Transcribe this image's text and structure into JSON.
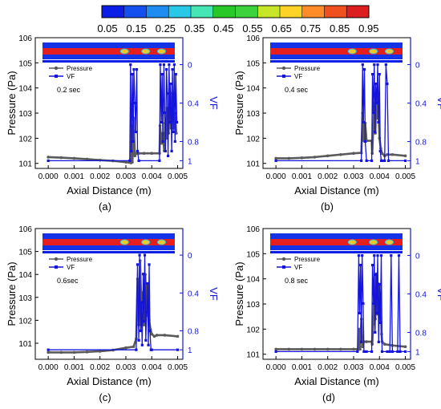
{
  "colorbar": {
    "labels": [
      "0.05",
      "0.15",
      "0.25",
      "0.35",
      "0.45",
      "0.55",
      "0.65",
      "0.75",
      "0.85",
      "0.95"
    ],
    "colors": [
      "#0a1ee6",
      "#1450f0",
      "#1e8cf0",
      "#28c8e6",
      "#46e6b4",
      "#28c828",
      "#3cd23c",
      "#c8e628",
      "#ffd228",
      "#ff8c28",
      "#f0501e",
      "#dc1e1e"
    ]
  },
  "colors": {
    "pressure": "#5a5a5a",
    "vf": "#1414dc",
    "axis": "#000000",
    "vf_axis": "#1414dc"
  },
  "chart_data": [
    {
      "type": "line",
      "panel_label": "(a)",
      "annotation": "0.2 sec",
      "xlabel": "Axial Distance (m)",
      "ylabel": "Pressure (Pa)",
      "y2label": "VF",
      "xlim": [
        -0.0005,
        0.0052
      ],
      "ylim": [
        100.8,
        106.0
      ],
      "y2lim": [
        1.08,
        -0.28
      ],
      "xticks": [
        "0.000",
        "0.001",
        "0.002",
        "0.003",
        "0.004",
        "0.005"
      ],
      "yticks": [
        "101",
        "102",
        "103",
        "104",
        "105",
        "106"
      ],
      "y2ticks": [
        "0",
        "0.4",
        "0.8",
        "1"
      ],
      "legend": [
        "Pressure",
        "VF"
      ],
      "series": [
        {
          "name": "Pressure",
          "axis": "left",
          "x": [
            0.0,
            0.0005,
            0.001,
            0.0015,
            0.002,
            0.0025,
            0.003,
            0.0032,
            0.00322,
            0.00325,
            0.00328,
            0.0033,
            0.00335,
            0.0034,
            0.0035,
            0.0037,
            0.004,
            0.0043,
            0.00432,
            0.00438,
            0.00443,
            0.00448,
            0.00452,
            0.00456,
            0.0046,
            0.00465,
            0.0047,
            0.00475,
            0.0048,
            0.00485,
            0.0049,
            0.00495
          ],
          "y": [
            101.25,
            101.23,
            101.2,
            101.17,
            101.13,
            101.1,
            101.05,
            101.02,
            102.5,
            101.05,
            101.6,
            102.8,
            101.3,
            101.4,
            101.4,
            101.4,
            101.4,
            101.4,
            102.5,
            101.8,
            102.2,
            101.5,
            102.6,
            102.0,
            103.2,
            102.2,
            103.5,
            102.4,
            103.8,
            102.4,
            103.0,
            102.2
          ]
        },
        {
          "name": "VF",
          "axis": "right",
          "x": [
            0.0,
            0.00315,
            0.00318,
            0.00321,
            0.00325,
            0.00328,
            0.00331,
            0.00335,
            0.00338,
            0.00342,
            0.00345,
            0.0035,
            0.0043,
            0.00433,
            0.00437,
            0.0044,
            0.00443,
            0.00447,
            0.0045,
            0.00453,
            0.00457,
            0.0046,
            0.00463,
            0.00467,
            0.0047,
            0.00473,
            0.00477,
            0.0048,
            0.00483,
            0.00487,
            0.0049,
            0.00493,
            0.00497
          ],
          "y": [
            1.0,
            1.0,
            0.0,
            0.9,
            0.1,
            0.8,
            0.05,
            0.4,
            0.7,
            0.05,
            0.9,
            1.0,
            1.0,
            0.0,
            0.6,
            0.1,
            0.8,
            0.0,
            0.5,
            0.9,
            0.05,
            0.3,
            0.95,
            0.0,
            0.6,
            0.2,
            0.9,
            0.05,
            0.7,
            0.0,
            0.8,
            0.1,
            0.6
          ]
        }
      ]
    },
    {
      "type": "line",
      "panel_label": "(b)",
      "annotation": "0.4 sec",
      "xlabel": "Axial Distance (m)",
      "ylabel": "Pressure (Pa)",
      "y2label": "VF",
      "xlim": [
        -0.0005,
        0.0052
      ],
      "ylim": [
        100.8,
        106.0
      ],
      "y2lim": [
        1.08,
        -0.28
      ],
      "xticks": [
        "0.000",
        "0.001",
        "0.002",
        "0.003",
        "0.004",
        "0.005"
      ],
      "yticks": [
        "101",
        "102",
        "103",
        "104",
        "105",
        "106"
      ],
      "y2ticks": [
        "0",
        "0.4",
        "0.8",
        "1"
      ],
      "legend": [
        "Pressure",
        "VF"
      ],
      "series": [
        {
          "name": "Pressure",
          "axis": "left",
          "x": [
            0.0,
            0.0005,
            0.001,
            0.0015,
            0.002,
            0.0025,
            0.003,
            0.0033,
            0.00335,
            0.0034,
            0.00345,
            0.0035,
            0.0037,
            0.00372,
            0.00376,
            0.0038,
            0.00384,
            0.00388,
            0.00392,
            0.00396,
            0.004,
            0.00405,
            0.0041,
            0.0042,
            0.0043,
            0.0045,
            0.005
          ],
          "y": [
            101.2,
            101.2,
            101.22,
            101.25,
            101.3,
            101.35,
            101.4,
            101.42,
            103.0,
            101.9,
            102.6,
            101.9,
            101.9,
            101.4,
            102.4,
            103.4,
            102.2,
            103.8,
            102.8,
            103.2,
            102.0,
            101.6,
            101.4,
            101.3,
            101.35,
            101.35,
            101.3
          ]
        },
        {
          "name": "VF",
          "axis": "right",
          "x": [
            0.0,
            0.0033,
            0.00335,
            0.00338,
            0.00342,
            0.00345,
            0.0035,
            0.0037,
            0.00373,
            0.00376,
            0.0038,
            0.00383,
            0.00386,
            0.0039,
            0.00393,
            0.00396,
            0.004,
            0.00403,
            0.00407,
            0.0041,
            0.0042,
            0.00425,
            0.0043,
            0.00435,
            0.005
          ],
          "y": [
            1.0,
            1.0,
            0.0,
            0.6,
            0.05,
            0.8,
            1.0,
            1.0,
            0.1,
            0.5,
            0.0,
            0.7,
            0.2,
            0.4,
            0.0,
            0.6,
            0.1,
            0.9,
            1.0,
            1.0,
            1.0,
            0.0,
            0.2,
            1.0,
            1.0
          ]
        }
      ]
    },
    {
      "type": "line",
      "panel_label": "(c)",
      "annotation": "0.6sec",
      "xlabel": "Axial Distance (m)",
      "ylabel": "Pressure (Pa)",
      "y2label": "VF",
      "xlim": [
        -0.0005,
        0.0052
      ],
      "ylim": [
        100.3,
        106.0
      ],
      "y2lim": [
        1.1,
        -0.28
      ],
      "xticks": [
        "0.000",
        "0.001",
        "0.002",
        "0.003",
        "0.004",
        "0.005"
      ],
      "yticks": [
        "101",
        "102",
        "103",
        "104",
        "105",
        "106"
      ],
      "y2ticks": [
        "0",
        "0.4",
        "0.8",
        "1"
      ],
      "legend": [
        "Pressure",
        "VF"
      ],
      "series": [
        {
          "name": "Pressure",
          "axis": "left",
          "x": [
            0.0,
            0.0005,
            0.001,
            0.0015,
            0.002,
            0.0025,
            0.003,
            0.0033,
            0.0034,
            0.00345,
            0.0035,
            0.00355,
            0.0036,
            0.00365,
            0.0037,
            0.00375,
            0.0038,
            0.00385,
            0.0039,
            0.00395,
            0.004,
            0.0041,
            0.0042,
            0.0045,
            0.005
          ],
          "y": [
            100.6,
            100.6,
            100.6,
            100.62,
            100.65,
            100.7,
            100.8,
            100.85,
            101.2,
            103.8,
            101.8,
            104.6,
            102.5,
            103.2,
            101.8,
            104.0,
            102.2,
            103.5,
            102.0,
            101.6,
            101.4,
            101.3,
            101.35,
            101.35,
            101.3
          ]
        },
        {
          "name": "VF",
          "axis": "right",
          "x": [
            0.0,
            0.0034,
            0.00345,
            0.0035,
            0.00353,
            0.00357,
            0.0036,
            0.00363,
            0.00367,
            0.0037,
            0.00373,
            0.00377,
            0.0038,
            0.00383,
            0.00387,
            0.0039,
            0.00393,
            0.00397,
            0.004,
            0.005
          ],
          "y": [
            1.0,
            1.0,
            0.1,
            0.9,
            0.0,
            0.8,
            0.5,
            0.95,
            0.2,
            0.7,
            0.0,
            0.9,
            0.6,
            0.3,
            0.95,
            0.1,
            0.8,
            1.0,
            1.0,
            1.0
          ]
        }
      ]
    },
    {
      "type": "line",
      "panel_label": "(d)",
      "annotation": "0.8 sec",
      "xlabel": "Axial Distance (m)",
      "ylabel": "Pressure (Pa)",
      "y2label": "VF",
      "xlim": [
        -0.0005,
        0.0052
      ],
      "ylim": [
        100.8,
        106.0
      ],
      "y2lim": [
        1.08,
        -0.28
      ],
      "xticks": [
        "0.000",
        "0.001",
        "0.002",
        "0.003",
        "0.004",
        "0.005"
      ],
      "yticks": [
        "101",
        "102",
        "103",
        "104",
        "105",
        "106"
      ],
      "y2ticks": [
        "0",
        "0.4",
        "0.8",
        "1"
      ],
      "legend": [
        "Pressure",
        "VF"
      ],
      "series": [
        {
          "name": "Pressure",
          "axis": "left",
          "x": [
            0.0,
            0.0005,
            0.001,
            0.0015,
            0.002,
            0.0025,
            0.003,
            0.0032,
            0.00322,
            0.00325,
            0.0033,
            0.00335,
            0.0034,
            0.0035,
            0.0037,
            0.00372,
            0.00376,
            0.0038,
            0.00384,
            0.00388,
            0.00392,
            0.00396,
            0.004,
            0.00404,
            0.00408,
            0.0041,
            0.0042,
            0.0045,
            0.005
          ],
          "y": [
            101.2,
            101.2,
            101.2,
            101.2,
            101.2,
            101.2,
            101.2,
            101.2,
            102.0,
            101.2,
            102.4,
            101.3,
            101.5,
            101.5,
            101.5,
            101.4,
            102.2,
            103.5,
            102.4,
            104.2,
            102.6,
            103.8,
            102.4,
            103.4,
            101.8,
            101.5,
            101.4,
            101.35,
            101.3
          ]
        },
        {
          "name": "VF",
          "axis": "right",
          "x": [
            0.0,
            0.00315,
            0.0032,
            0.00323,
            0.00327,
            0.0033,
            0.00333,
            0.00337,
            0.0034,
            0.0035,
            0.0037,
            0.00373,
            0.00377,
            0.0038,
            0.00383,
            0.00387,
            0.0039,
            0.00393,
            0.00397,
            0.004,
            0.00403,
            0.00407,
            0.0041,
            0.0043,
            0.0044,
            0.00445,
            0.0045,
            0.0047,
            0.00475,
            0.0048,
            0.005
          ],
          "y": [
            1.0,
            1.0,
            0.0,
            0.6,
            0.1,
            0.9,
            0.0,
            0.5,
            1.0,
            1.0,
            1.0,
            0.1,
            0.5,
            0.0,
            0.8,
            0.2,
            0.6,
            0.0,
            0.9,
            0.3,
            0.7,
            0.0,
            1.0,
            1.0,
            1.0,
            0.0,
            1.0,
            1.0,
            0.0,
            1.0,
            1.0
          ]
        }
      ]
    }
  ]
}
